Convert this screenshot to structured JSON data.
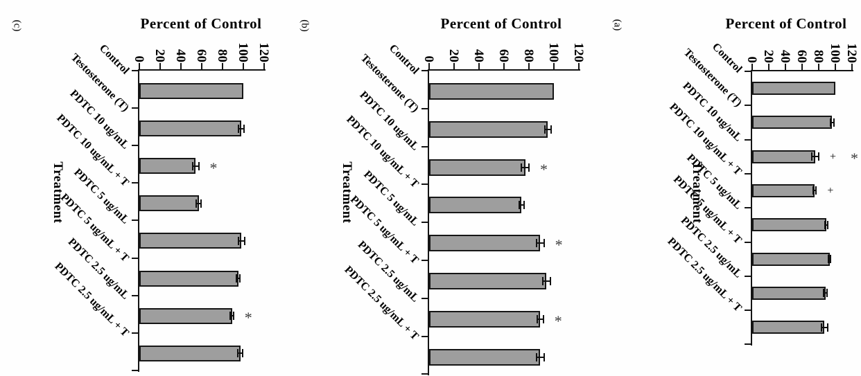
{
  "figure_title": "PDTC / Testosterone treatment bar charts (figure rotated 90 degrees clockwise)",
  "chart_data": [
    {
      "type": "bar",
      "panel_label": "(c)",
      "title": "Percent of Control",
      "value_axis_label": "Percent of Control",
      "category_axis_label": "Treatment",
      "orientation": "bars extend rightward (rotated figure)",
      "categories": [
        "Control",
        "Testosterone (T)",
        "PDTC 10 ug/mL",
        "PDTC 10 ug/mL + T",
        "PDTC 5 ug/mL",
        "PDTC 5 ug/mL + T",
        "PDTC 2.5 ug/mL",
        "PDTC 2.5 ug/mL + T"
      ],
      "values": [
        100,
        98,
        54,
        57,
        98,
        95,
        89,
        97
      ],
      "errors": [
        0,
        2.5,
        3,
        2.5,
        3,
        1.5,
        1.5,
        2.5
      ],
      "annotations": [
        [],
        [],
        [
          "*"
        ],
        [],
        [],
        [],
        [
          "*"
        ],
        []
      ],
      "ylim": [
        0,
        120
      ],
      "yticks": [
        0,
        20,
        40,
        60,
        80,
        100,
        120
      ],
      "bar_color": "#9e9e9e",
      "axis_color": "#141414",
      "grid": false,
      "legend": false
    },
    {
      "type": "bar",
      "panel_label": "(b)",
      "title": "Percent of Control",
      "value_axis_label": "Percent of Control",
      "category_axis_label": "Treatment",
      "orientation": "bars extend rightward (rotated figure)",
      "categories": [
        "Control",
        "Testosterone (T)",
        "PDTC 10 ug/mL",
        "PDTC 10 ug/mL + T",
        "PDTC 5 ug/mL",
        "PDTC 5 ug/mL + T",
        "PDTC 2.5 ug/mL",
        "PDTC 2.5 ug/mL + T"
      ],
      "values": [
        100,
        95,
        77,
        74,
        89,
        94,
        89,
        89
      ],
      "errors": [
        0,
        2.5,
        3,
        2,
        3,
        3,
        2.5,
        3
      ],
      "annotations": [
        [],
        [],
        [
          "*"
        ],
        [],
        [
          "*"
        ],
        [],
        [
          "*"
        ],
        []
      ],
      "ylim": [
        0,
        120
      ],
      "yticks": [
        0,
        20,
        40,
        60,
        80,
        100,
        120
      ],
      "bar_color": "#9e9e9e",
      "axis_color": "#141414",
      "grid": false,
      "legend": false
    },
    {
      "type": "bar",
      "panel_label": "(a)",
      "title": "Percent of Control",
      "value_axis_label": "Percent of Control",
      "category_axis_label": "Treatment",
      "orientation": "bars extend rightward (rotated figure)",
      "categories": [
        "Control",
        "Testosterone (T)",
        "PDTC 10 ug/mL",
        "PDTC 10 ug/mL + T",
        "PDTC 5 ug/mL",
        "PDTC 5 ug/mL + T",
        "PDTC 2.5 ug/mL",
        "PDTC 2.5 ug/mL + T"
      ],
      "values": [
        100,
        96,
        76,
        75,
        89,
        93,
        88,
        87
      ],
      "errors": [
        0,
        2,
        4,
        2,
        1.5,
        1.5,
        2,
        4
      ],
      "annotations": [
        [],
        [],
        [
          "+",
          "*"
        ],
        [
          "+"
        ],
        [],
        [],
        [],
        []
      ],
      "ylim": [
        0,
        120
      ],
      "yticks": [
        0,
        20,
        40,
        60,
        80,
        100,
        120
      ],
      "bar_color": "#9e9e9e",
      "axis_color": "#141414",
      "grid": false,
      "legend": false
    }
  ]
}
